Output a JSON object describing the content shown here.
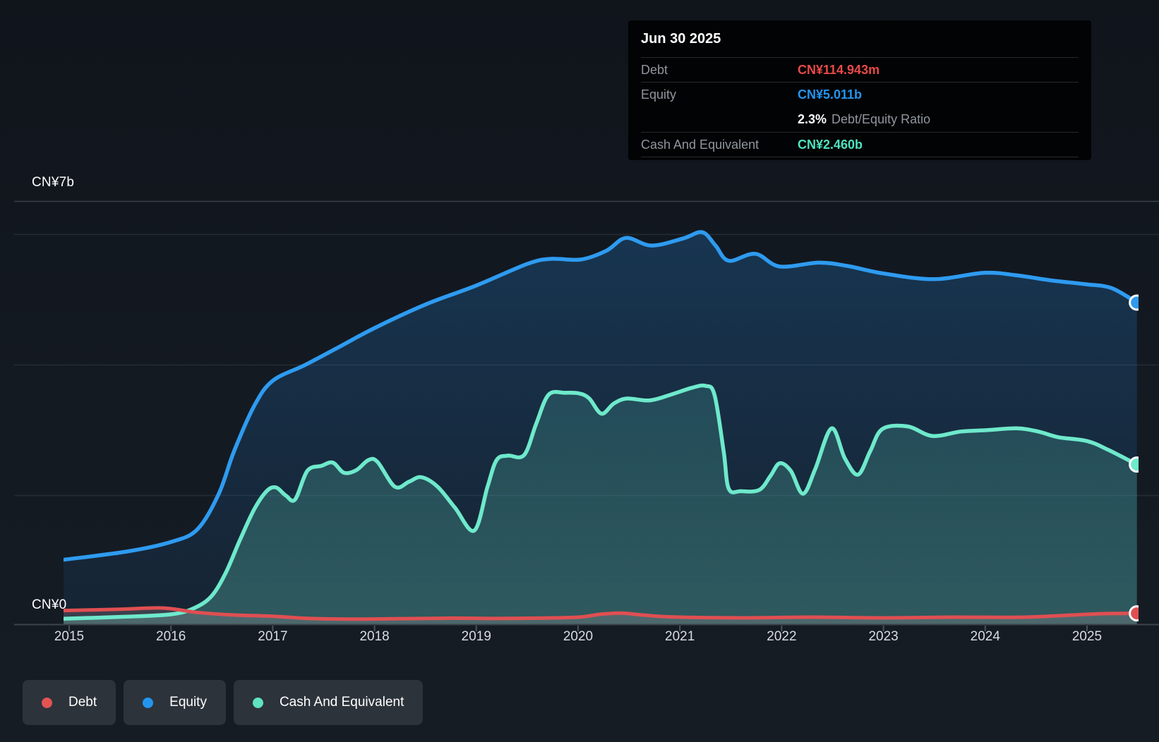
{
  "y_axis": {
    "top_label": "CN¥7b",
    "bottom_label": "CN¥0"
  },
  "tooltip": {
    "title": "Jun 30 2025",
    "debt_label": "Debt",
    "debt_value": "CN¥114.943m",
    "equity_label": "Equity",
    "equity_value": "CN¥5.011b",
    "ratio_value": "2.3%",
    "ratio_label": "Debt/Equity Ratio",
    "cash_label": "Cash And Equivalent",
    "cash_value": "CN¥2.460b"
  },
  "legend": {
    "items": [
      {
        "id": "debt",
        "label": "Debt",
        "color": "#e25352"
      },
      {
        "id": "equity",
        "label": "Equity",
        "color": "#2395ef"
      },
      {
        "id": "cash",
        "label": "Cash And Equivalent",
        "color": "#5ee3c3"
      }
    ]
  },
  "colors": {
    "debt_line": "#e04f52",
    "equity_line": "#2e9bf0",
    "cash_line": "#6ee9cb",
    "axis_line": "#3c434b",
    "tick": "#4a515a",
    "gridline_major": "#39404a",
    "gridline_minor": "#252c35",
    "year_label": "#d9dce0",
    "tooltip_debt_value": "#e74a49",
    "tooltip_equity_value": "#2395ef",
    "tooltip_cash_value": "#4fe3c0"
  },
  "chart_data": {
    "type": "area",
    "unit": "CN¥ billions",
    "ylim": [
      0,
      7
    ],
    "xlim": [
      2014.94,
      2025.55
    ],
    "x_ticks": [
      2015,
      2016,
      2017,
      2018,
      2019,
      2020,
      2021,
      2022,
      2023,
      2024,
      2025
    ],
    "x_tick_labels": [
      "2015",
      "2016",
      "2017",
      "2018",
      "2019",
      "2020",
      "2021",
      "2022",
      "2023",
      "2024",
      "2025"
    ],
    "y_labeled_gridline": "CN¥7b",
    "legend_position": "bottom-left",
    "grid": true,
    "last_point": {
      "date": "Jun 30 2025",
      "debt_b": 0.114943,
      "equity_b": 5.011,
      "cash_b": 2.46,
      "debt_equity_ratio_pct": 2.3
    },
    "series": [
      {
        "name": "Equity",
        "points": [
          [
            2014.945,
            0.96
          ],
          [
            2015.57,
            1.09
          ],
          [
            2016.0,
            1.24
          ],
          [
            2016.26,
            1.44
          ],
          [
            2016.47,
            2.0
          ],
          [
            2016.62,
            2.67
          ],
          [
            2016.82,
            3.39
          ],
          [
            2017.0,
            3.78
          ],
          [
            2017.32,
            4.03
          ],
          [
            2017.65,
            4.31
          ],
          [
            2018.0,
            4.61
          ],
          [
            2018.5,
            4.98
          ],
          [
            2019.0,
            5.28
          ],
          [
            2019.5,
            5.62
          ],
          [
            2019.73,
            5.7
          ],
          [
            2020.03,
            5.69
          ],
          [
            2020.28,
            5.83
          ],
          [
            2020.47,
            6.03
          ],
          [
            2020.72,
            5.91
          ],
          [
            2021.03,
            6.02
          ],
          [
            2021.22,
            6.12
          ],
          [
            2021.35,
            5.91
          ],
          [
            2021.48,
            5.67
          ],
          [
            2021.74,
            5.78
          ],
          [
            2021.98,
            5.58
          ],
          [
            2022.36,
            5.64
          ],
          [
            2022.64,
            5.59
          ],
          [
            2023.0,
            5.47
          ],
          [
            2023.5,
            5.38
          ],
          [
            2023.99,
            5.48
          ],
          [
            2024.31,
            5.44
          ],
          [
            2024.65,
            5.36
          ],
          [
            2024.99,
            5.3
          ],
          [
            2025.24,
            5.24
          ],
          [
            2025.49,
            5.011
          ]
        ]
      },
      {
        "name": "Cash And Equivalent",
        "points": [
          [
            2014.945,
            0.03
          ],
          [
            2015.5,
            0.06
          ],
          [
            2016.0,
            0.1
          ],
          [
            2016.23,
            0.2
          ],
          [
            2016.4,
            0.39
          ],
          [
            2016.54,
            0.76
          ],
          [
            2016.68,
            1.28
          ],
          [
            2016.82,
            1.76
          ],
          [
            2016.94,
            2.04
          ],
          [
            2017.03,
            2.1
          ],
          [
            2017.13,
            1.97
          ],
          [
            2017.22,
            1.91
          ],
          [
            2017.34,
            2.36
          ],
          [
            2017.48,
            2.44
          ],
          [
            2017.59,
            2.49
          ],
          [
            2017.7,
            2.33
          ],
          [
            2017.82,
            2.37
          ],
          [
            2017.94,
            2.53
          ],
          [
            2018.03,
            2.5
          ],
          [
            2018.2,
            2.11
          ],
          [
            2018.34,
            2.19
          ],
          [
            2018.46,
            2.26
          ],
          [
            2018.62,
            2.11
          ],
          [
            2018.79,
            1.78
          ],
          [
            2018.98,
            1.42
          ],
          [
            2019.11,
            2.11
          ],
          [
            2019.2,
            2.53
          ],
          [
            2019.31,
            2.6
          ],
          [
            2019.47,
            2.61
          ],
          [
            2019.59,
            3.11
          ],
          [
            2019.71,
            3.56
          ],
          [
            2019.87,
            3.59
          ],
          [
            2020.01,
            3.58
          ],
          [
            2020.11,
            3.5
          ],
          [
            2020.23,
            3.26
          ],
          [
            2020.35,
            3.42
          ],
          [
            2020.48,
            3.5
          ],
          [
            2020.7,
            3.47
          ],
          [
            2020.91,
            3.56
          ],
          [
            2021.12,
            3.67
          ],
          [
            2021.25,
            3.7
          ],
          [
            2021.34,
            3.56
          ],
          [
            2021.43,
            2.67
          ],
          [
            2021.48,
            2.08
          ],
          [
            2021.6,
            2.04
          ],
          [
            2021.78,
            2.06
          ],
          [
            2021.89,
            2.28
          ],
          [
            2021.98,
            2.48
          ],
          [
            2022.09,
            2.36
          ],
          [
            2022.21,
            2.0
          ],
          [
            2022.33,
            2.39
          ],
          [
            2022.49,
            3.03
          ],
          [
            2022.62,
            2.56
          ],
          [
            2022.75,
            2.3
          ],
          [
            2022.87,
            2.67
          ],
          [
            2022.99,
            3.02
          ],
          [
            2023.24,
            3.06
          ],
          [
            2023.48,
            2.91
          ],
          [
            2023.76,
            2.98
          ],
          [
            2024.0,
            3.0
          ],
          [
            2024.31,
            3.03
          ],
          [
            2024.52,
            2.98
          ],
          [
            2024.72,
            2.89
          ],
          [
            2025.0,
            2.83
          ],
          [
            2025.21,
            2.69
          ],
          [
            2025.49,
            2.46
          ]
        ]
      },
      {
        "name": "Debt",
        "points": [
          [
            2014.945,
            0.16
          ],
          [
            2015.5,
            0.18
          ],
          [
            2015.92,
            0.2
          ],
          [
            2016.26,
            0.13
          ],
          [
            2016.61,
            0.09
          ],
          [
            2017.0,
            0.07
          ],
          [
            2017.37,
            0.035
          ],
          [
            2017.79,
            0.025
          ],
          [
            2018.2,
            0.03
          ],
          [
            2018.76,
            0.04
          ],
          [
            2019.17,
            0.035
          ],
          [
            2019.59,
            0.04
          ],
          [
            2020.01,
            0.055
          ],
          [
            2020.21,
            0.1
          ],
          [
            2020.42,
            0.12
          ],
          [
            2020.63,
            0.09
          ],
          [
            2020.91,
            0.06
          ],
          [
            2021.6,
            0.045
          ],
          [
            2022.3,
            0.055
          ],
          [
            2022.99,
            0.045
          ],
          [
            2023.69,
            0.055
          ],
          [
            2024.38,
            0.055
          ],
          [
            2024.87,
            0.09
          ],
          [
            2025.15,
            0.11
          ],
          [
            2025.49,
            0.115
          ]
        ]
      }
    ]
  }
}
